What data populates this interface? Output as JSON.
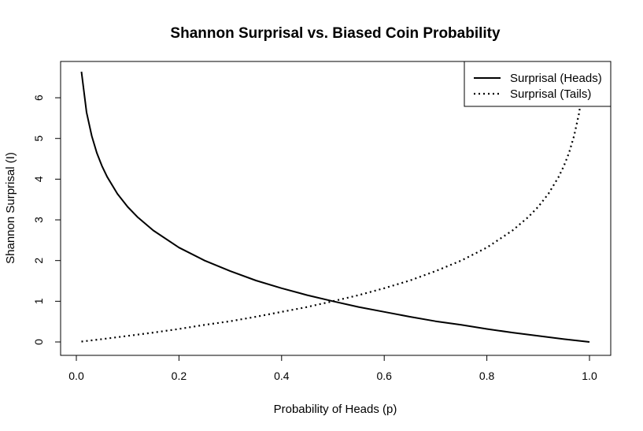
{
  "chart_data": {
    "type": "line",
    "title": "Shannon Surprisal vs. Biased Coin Probability",
    "xlabel": "Probability of Heads (p)",
    "ylabel": "Shannon Surprisal (I)",
    "xlim": [
      0,
      1
    ],
    "ylim": [
      0,
      6.64
    ],
    "x_ticks": [
      0.0,
      0.2,
      0.4,
      0.6,
      0.8,
      1.0
    ],
    "x_tick_labels": [
      "0.0",
      "0.2",
      "0.4",
      "0.6",
      "0.8",
      "1.0"
    ],
    "y_ticks": [
      0,
      1,
      2,
      3,
      4,
      5,
      6
    ],
    "y_tick_labels": [
      "0",
      "1",
      "2",
      "3",
      "4",
      "5",
      "6"
    ],
    "grid": false,
    "legend_position": "top-right",
    "series": [
      {
        "name": "Surprisal (Heads)",
        "line_style": "solid",
        "color": "#000000",
        "x": [
          0.01,
          0.02,
          0.03,
          0.04,
          0.05,
          0.06,
          0.08,
          0.1,
          0.12,
          0.15,
          0.2,
          0.25,
          0.3,
          0.35,
          0.4,
          0.45,
          0.5,
          0.55,
          0.6,
          0.65,
          0.7,
          0.75,
          0.8,
          0.85,
          0.9,
          0.95,
          1.0
        ],
        "values": [
          6.64,
          5.64,
          5.06,
          4.64,
          4.32,
          4.06,
          3.64,
          3.32,
          3.06,
          2.74,
          2.32,
          2.0,
          1.74,
          1.51,
          1.32,
          1.15,
          1.0,
          0.86,
          0.74,
          0.62,
          0.51,
          0.42,
          0.32,
          0.23,
          0.15,
          0.07,
          0.0
        ]
      },
      {
        "name": "Surprisal (Tails)",
        "line_style": "dotted",
        "color": "#000000",
        "x": [
          0.01,
          0.05,
          0.1,
          0.15,
          0.2,
          0.25,
          0.3,
          0.35,
          0.4,
          0.45,
          0.5,
          0.55,
          0.6,
          0.65,
          0.7,
          0.75,
          0.8,
          0.85,
          0.88,
          0.9,
          0.92,
          0.94,
          0.95,
          0.96,
          0.97,
          0.98,
          0.99
        ],
        "values": [
          0.01,
          0.07,
          0.15,
          0.23,
          0.32,
          0.42,
          0.51,
          0.62,
          0.74,
          0.86,
          1.0,
          1.15,
          1.32,
          1.51,
          1.74,
          2.0,
          2.32,
          2.74,
          3.06,
          3.32,
          3.64,
          4.06,
          4.32,
          4.64,
          5.06,
          5.64,
          6.64
        ]
      }
    ]
  }
}
